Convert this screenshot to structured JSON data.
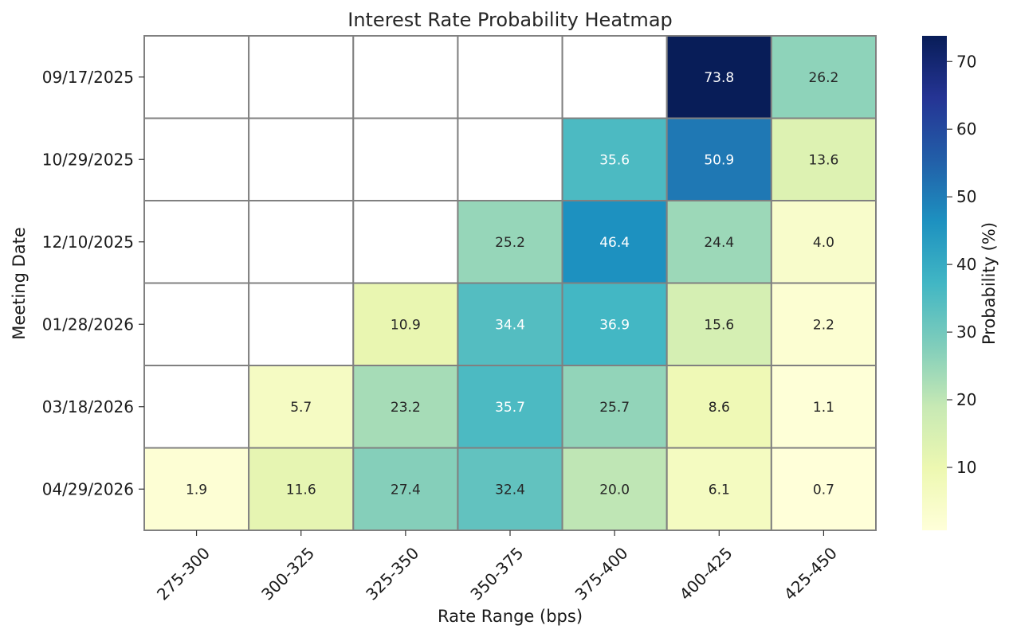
{
  "chart_data": {
    "type": "heatmap",
    "title": "Interest Rate Probability Heatmap",
    "xlabel": "Rate Range (bps)",
    "ylabel": "Meeting Date",
    "x_categories": [
      "275-300",
      "300-325",
      "325-350",
      "350-375",
      "375-400",
      "400-425",
      "425-450"
    ],
    "y_categories": [
      "09/17/2025",
      "10/29/2025",
      "12/10/2025",
      "01/28/2026",
      "03/18/2026",
      "04/29/2026"
    ],
    "values": [
      [
        null,
        null,
        null,
        null,
        null,
        73.8,
        26.2
      ],
      [
        null,
        null,
        null,
        null,
        35.6,
        50.9,
        13.6
      ],
      [
        null,
        null,
        null,
        25.2,
        46.4,
        24.4,
        4.0
      ],
      [
        null,
        null,
        10.9,
        34.4,
        36.9,
        15.6,
        2.2
      ],
      [
        null,
        5.7,
        23.2,
        35.7,
        25.7,
        8.6,
        1.1
      ],
      [
        1.9,
        11.6,
        27.4,
        32.4,
        20.0,
        6.1,
        0.7
      ]
    ],
    "colorbar": {
      "label": "Probability (%)",
      "colormap": "YlGnBu",
      "vmin": 0.7,
      "vmax": 73.8,
      "ticks": [
        10,
        20,
        30,
        40,
        50,
        60,
        70
      ]
    },
    "grid_color": "#808080",
    "empty_cell_color": "#ffffff"
  }
}
